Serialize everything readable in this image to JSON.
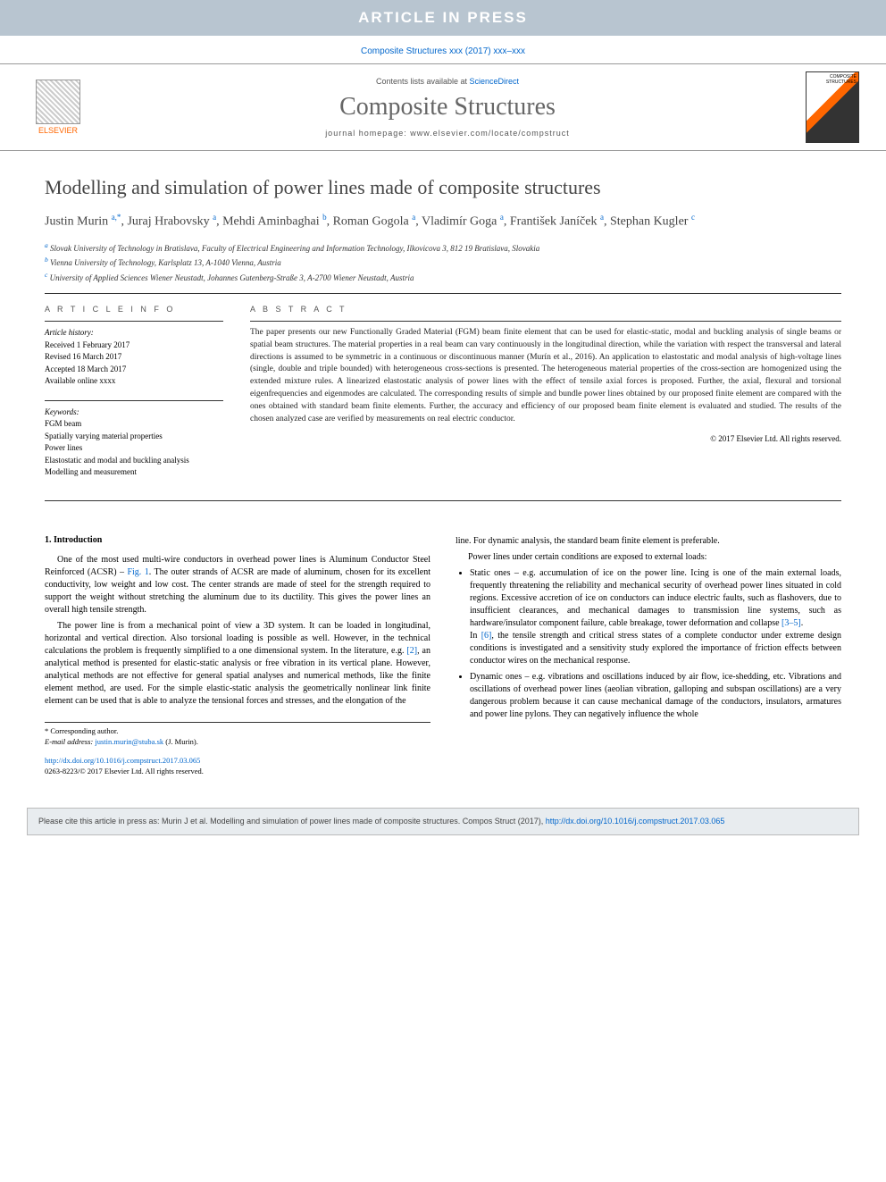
{
  "banner": "ARTICLE IN PRESS",
  "citation_line": "Composite Structures xxx (2017) xxx–xxx",
  "masthead": {
    "contents_prefix": "Contents lists available at ",
    "contents_link": "ScienceDirect",
    "journal_name": "Composite Structures",
    "homepage_prefix": "journal homepage: ",
    "homepage_url": "www.elsevier.com/locate/compstruct",
    "elsevier_label": "ELSEVIER",
    "cover_label": "COMPOSITE STRUCTURES"
  },
  "title": "Modelling and simulation of power lines made of composite structures",
  "authors_html": "Justin Murin <sup>a,*</sup>, Juraj Hrabovsky <sup>a</sup>, Mehdi Aminbaghai <sup>b</sup>, Roman Gogola <sup>a</sup>, Vladimír Goga <sup>a</sup>, František Janíček <sup>a</sup>, Stephan Kugler <sup>c</sup>",
  "affiliations": [
    {
      "sup": "a",
      "text": "Slovak University of Technology in Bratislava, Faculty of Electrical Engineering and Information Technology, Ilkovicova 3, 812 19 Bratislava, Slovakia"
    },
    {
      "sup": "b",
      "text": "Vienna University of Technology, Karlsplatz 13, A-1040 Vienna, Austria"
    },
    {
      "sup": "c",
      "text": "University of Applied Sciences Wiener Neustadt, Johannes Gutenberg-Straße 3, A-2700 Wiener Neustadt, Austria"
    }
  ],
  "info": {
    "label": "A R T I C L E   I N F O",
    "history_label": "Article history:",
    "history": [
      "Received 1 February 2017",
      "Revised 16 March 2017",
      "Accepted 18 March 2017",
      "Available online xxxx"
    ],
    "keywords_label": "Keywords:",
    "keywords": [
      "FGM beam",
      "Spatially varying material properties",
      "Power lines",
      "Elastostatic and modal and buckling analysis",
      "Modelling and measurement"
    ]
  },
  "abstract": {
    "label": "A B S T R A C T",
    "text": "The paper presents our new Functionally Graded Material (FGM) beam finite element that can be used for elastic-static, modal and buckling analysis of single beams or spatial beam structures. The material properties in a real beam can vary continuously in the longitudinal direction, while the variation with respect the transversal and lateral directions is assumed to be symmetric in a continuous or discontinuous manner (Murín et al., 2016). An application to elastostatic and modal analysis of high-voltage lines (single, double and triple bounded) with heterogeneous cross-sections is presented. The heterogeneous material properties of the cross-section are homogenized using the extended mixture rules. A linearized elastostatic analysis of power lines with the effect of tensile axial forces is proposed. Further, the axial, flexural and torsional eigenfrequencies and eigenmodes are calculated. The corresponding results of simple and bundle power lines obtained by our proposed finite element are compared with the ones obtained with standard beam finite elements. Further, the accuracy and efficiency of our proposed beam finite element is evaluated and studied. The results of the chosen analyzed case are verified by measurements on real electric conductor.",
    "copyright": "© 2017 Elsevier Ltd. All rights reserved."
  },
  "body": {
    "section_heading": "1. Introduction",
    "left": [
      "One of the most used multi-wire conductors in overhead power lines is Aluminum Conductor Steel Reinforced (ACSR) – Fig. 1. The outer strands of ACSR are made of aluminum, chosen for its excellent conductivity, low weight and low cost. The center strands are made of steel for the strength required to support the weight without stretching the aluminum due to its ductility. This gives the power lines an overall high tensile strength.",
      "The power line is from a mechanical point of view a 3D system. It can be loaded in longitudinal, horizontal and vertical direction. Also torsional loading is possible as well. However, in the technical calculations the problem is frequently simplified to a one dimensional system. In the literature, e.g. [2], an analytical method is presented for elastic-static analysis or free vibration in its vertical plane. However, analytical methods are not effective for general spatial analyses and numerical methods, like the finite element method, are used. For the simple elastic-static analysis the geometrically nonlinear link finite element can be used that is able to analyze the tensional forces and stresses, and the elongation of the"
    ],
    "right_intro": [
      "line. For dynamic analysis, the standard beam finite element is preferable.",
      "Power lines under certain conditions are exposed to external loads:"
    ],
    "bullets": [
      "Static ones – e.g. accumulation of ice on the power line. Icing is one of the main external loads, frequently threatening the reliability and mechanical security of overhead power lines situated in cold regions. Excessive accretion of ice on conductors can induce electric faults, such as flashovers, due to insufficient clearances, and mechanical damages to transmission line systems, such as hardware/insulator component failure, cable breakage, tower deformation and collapse [3–5].\nIn [6], the tensile strength and critical stress states of a complete conductor under extreme design conditions is investigated and a sensitivity study explored the importance of friction effects between conductor wires on the mechanical response.",
      "Dynamic ones – e.g. vibrations and oscillations induced by air flow, ice-shedding, etc. Vibrations and oscillations of overhead power lines (aeolian vibration, galloping and subspan oscillations) are a very dangerous problem because it can cause mechanical damage of the conductors, insulators, armatures and power line pylons. They can negatively influence the whole"
    ]
  },
  "corresponding": {
    "label": "* Corresponding author.",
    "email_label": "E-mail address: ",
    "email": "justin.murin@stuba.sk",
    "email_name": " (J. Murin)."
  },
  "doi": {
    "url": "http://dx.doi.org/10.1016/j.compstruct.2017.03.065",
    "issn": "0263-8223/© 2017 Elsevier Ltd. All rights reserved."
  },
  "cite_box": {
    "prefix": "Please cite this article in press as: Murin J et al. Modelling and simulation of power lines made of composite structures. Compos Struct (2017), ",
    "link": "http://dx.doi.org/10.1016/j.compstruct.2017.03.065"
  },
  "colors": {
    "banner_bg": "#b8c5d0",
    "link": "#0066cc",
    "elsevier_orange": "#ff6600",
    "text": "#222222",
    "muted": "#555555",
    "citebox_bg": "#e8ecef"
  }
}
